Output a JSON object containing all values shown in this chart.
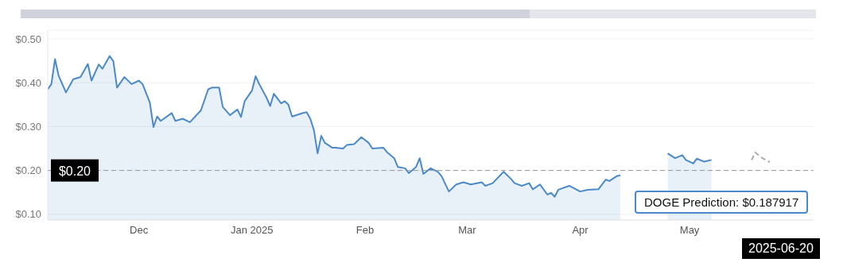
{
  "chart_data": {
    "type": "area",
    "x": [
      "2024-11-06",
      "2024-11-07",
      "2024-11-08",
      "2024-11-09",
      "2024-11-11",
      "2024-11-13",
      "2024-11-15",
      "2024-11-17",
      "2024-11-18",
      "2024-11-20",
      "2024-11-21",
      "2024-11-23",
      "2024-11-24",
      "2024-11-25",
      "2024-11-27",
      "2024-11-29",
      "2024-12-01",
      "2024-12-02",
      "2024-12-04",
      "2024-12-05",
      "2024-12-06",
      "2024-12-07",
      "2024-12-10",
      "2024-12-11",
      "2024-12-13",
      "2024-12-15",
      "2024-12-18",
      "2024-12-20",
      "2024-12-21",
      "2024-12-23",
      "2024-12-24",
      "2024-12-26",
      "2024-12-28",
      "2024-12-29",
      "2024-12-30",
      "2025-01-01",
      "2025-01-02",
      "2025-01-03",
      "2025-01-05",
      "2025-01-06",
      "2025-01-07",
      "2025-01-09",
      "2025-01-10",
      "2025-01-11",
      "2025-01-12",
      "2025-01-15",
      "2025-01-16",
      "2025-01-17",
      "2025-01-18",
      "2025-01-19",
      "2025-01-20",
      "2025-01-21",
      "2025-01-23",
      "2025-01-24",
      "2025-01-26",
      "2025-01-27",
      "2025-01-29",
      "2025-01-31",
      "2025-02-02",
      "2025-02-03",
      "2025-02-06",
      "2025-02-07",
      "2025-02-09",
      "2025-02-10",
      "2025-02-12",
      "2025-02-13",
      "2025-02-15",
      "2025-02-16",
      "2025-02-17",
      "2025-02-19",
      "2025-02-21",
      "2025-02-22",
      "2025-02-24",
      "2025-02-26",
      "2025-02-28",
      "2025-03-02",
      "2025-03-05",
      "2025-03-06",
      "2025-03-08",
      "2025-03-11",
      "2025-03-13",
      "2025-03-14",
      "2025-03-16",
      "2025-03-18",
      "2025-03-19",
      "2025-03-21",
      "2025-03-23",
      "2025-03-24",
      "2025-03-25",
      "2025-03-26",
      "2025-03-29",
      "2025-04-01",
      "2025-04-03",
      "2025-04-06",
      "2025-04-08",
      "2025-04-09",
      "2025-04-11",
      "2025-04-12",
      "2025-04-20",
      "2025-04-25",
      "2025-04-27",
      "2025-04-29",
      "2025-04-30",
      "2025-05-02",
      "2025-05-03",
      "2025-05-05",
      "2025-05-07"
    ],
    "series": [
      {
        "color": "#4a8ac9",
        "values": [
          0.385,
          0.397,
          0.454,
          0.416,
          0.378,
          0.408,
          0.413,
          0.443,
          0.405,
          0.442,
          0.432,
          0.461,
          0.449,
          0.389,
          0.413,
          0.397,
          0.405,
          0.397,
          0.355,
          0.299,
          0.323,
          0.313,
          0.331,
          0.313,
          0.318,
          0.31,
          0.337,
          0.385,
          0.389,
          0.389,
          0.345,
          0.326,
          0.339,
          0.322,
          0.358,
          0.382,
          0.415,
          0.397,
          0.366,
          0.347,
          0.375,
          0.353,
          0.358,
          0.35,
          0.323,
          0.331,
          0.333,
          0.318,
          0.292,
          0.239,
          0.279,
          0.263,
          0.252,
          0.252,
          0.25,
          0.258,
          0.26,
          0.276,
          0.263,
          0.25,
          0.252,
          0.242,
          0.228,
          0.208,
          0.205,
          0.194,
          0.208,
          0.228,
          0.192,
          0.205,
          0.197,
          0.187,
          0.152,
          0.168,
          0.173,
          0.168,
          0.173,
          0.165,
          0.171,
          0.197,
          0.181,
          0.171,
          0.165,
          0.171,
          0.157,
          0.168,
          0.145,
          0.149,
          0.14,
          0.156,
          0.165,
          0.152,
          0.156,
          0.157,
          0.179,
          0.176,
          0.187,
          0.189,
          null,
          0.239,
          0.228,
          0.235,
          0.224,
          0.216,
          0.227,
          0.22,
          0.224
        ]
      },
      {
        "type": "line",
        "color": "#aaaaaa",
        "line_style": "dashed",
        "x": [
          "2025-05-18",
          "2025-05-19",
          "2025-05-21",
          "2025-05-23"
        ],
        "values": [
          0.224,
          0.241,
          0.228,
          0.219
        ]
      }
    ],
    "xlim": [
      "2024-11-06",
      "2025-06-04"
    ],
    "xticks": [
      {
        "value": "2024-12-01",
        "label": "Dec"
      },
      {
        "value": "2025-01-01",
        "label": "Jan 2025"
      },
      {
        "value": "2025-02-01",
        "label": "Feb"
      },
      {
        "value": "2025-03-01",
        "label": "Mar"
      },
      {
        "value": "2025-04-01",
        "label": "Apr"
      },
      {
        "value": "2025-05-01",
        "label": "May"
      }
    ],
    "ylim": [
      0.087,
      0.52
    ],
    "yticks": [
      {
        "value": 0.1,
        "label": "$0.10"
      },
      {
        "value": 0.2,
        "label": "$0.20"
      },
      {
        "value": 0.3,
        "label": "$0.30"
      },
      {
        "value": 0.4,
        "label": "$0.40"
      },
      {
        "value": 0.5,
        "label": "$0.50"
      }
    ],
    "ref_lines": [
      {
        "axis": "y",
        "value": 0.2,
        "label": "$0.20",
        "color": "#999999",
        "line_style": "dashed"
      }
    ],
    "annotations": [
      "DOGE Prediction: $0.187917",
      "2025-06-20"
    ],
    "grid": "y",
    "marker": "none"
  }
}
